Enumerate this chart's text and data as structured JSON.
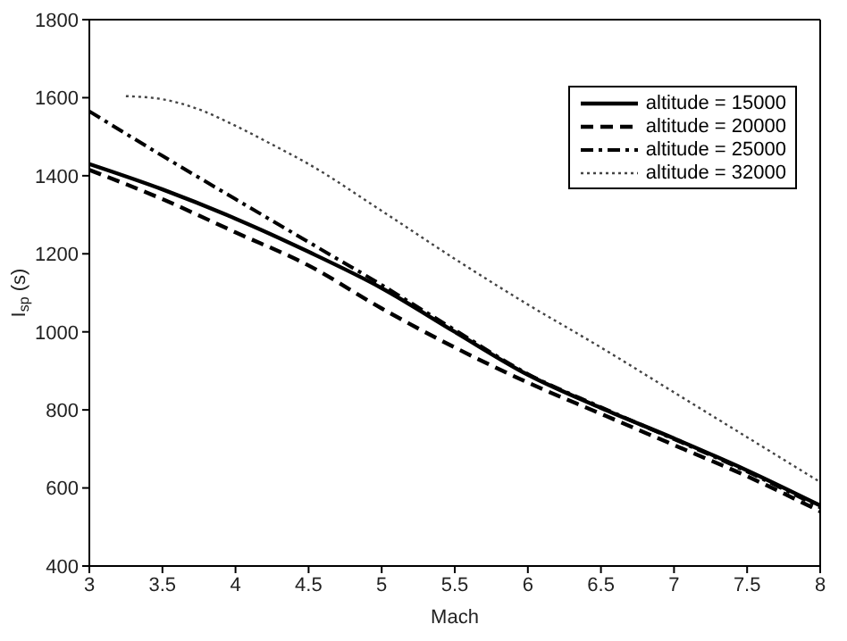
{
  "chart_data": {
    "type": "line",
    "xlabel": "Mach",
    "ylabel": "I$_{sp}$ (s)",
    "xlim": [
      3,
      8
    ],
    "xticks": [
      3,
      3.5,
      4,
      4.5,
      5,
      5.5,
      6,
      6.5,
      7,
      7.5,
      8
    ],
    "ylim": [
      400,
      1800
    ],
    "yticks": [
      400,
      600,
      800,
      1000,
      1200,
      1400,
      1600,
      1800
    ],
    "grid": false,
    "legend": "top right",
    "marker": "none",
    "series": [
      {
        "name": "altitude = 15000",
        "color": "#000000",
        "line_style": "solid",
        "x": [
          3,
          3.5,
          4,
          4.5,
          5,
          5.5,
          6,
          6.5,
          7,
          7.5,
          8
        ],
        "values": [
          1430,
          1365,
          1290,
          1205,
          1112,
          1000,
          890,
          805,
          727,
          645,
          555
        ]
      },
      {
        "name": "altitude = 20000",
        "color": "#000000",
        "line_style": "dashed",
        "x": [
          3,
          3.5,
          4,
          4.5,
          5,
          5.5,
          6,
          6.5,
          7,
          7.5,
          8
        ],
        "values": [
          1415,
          1340,
          1255,
          1170,
          1060,
          960,
          870,
          790,
          710,
          630,
          540
        ]
      },
      {
        "name": "altitude = 25000",
        "color": "#000000",
        "line_style": "dashdot",
        "x": [
          3,
          3.5,
          4,
          4.5,
          5,
          5.5,
          6,
          6.5,
          7,
          7.5,
          8
        ],
        "values": [
          1565,
          1451,
          1340,
          1230,
          1120,
          1005,
          892,
          807,
          725,
          642,
          550
        ]
      },
      {
        "name": "altitude = 32000",
        "color": "#444444",
        "line_style": "dotted",
        "x": [
          3.25,
          3.5,
          3.75,
          4,
          4.25,
          4.5,
          5,
          5.5,
          6,
          6.5,
          7,
          7.5,
          8
        ],
        "values": [
          1604,
          1596,
          1570,
          1528,
          1480,
          1430,
          1310,
          1187,
          1070,
          960,
          845,
          730,
          615
        ]
      }
    ]
  }
}
